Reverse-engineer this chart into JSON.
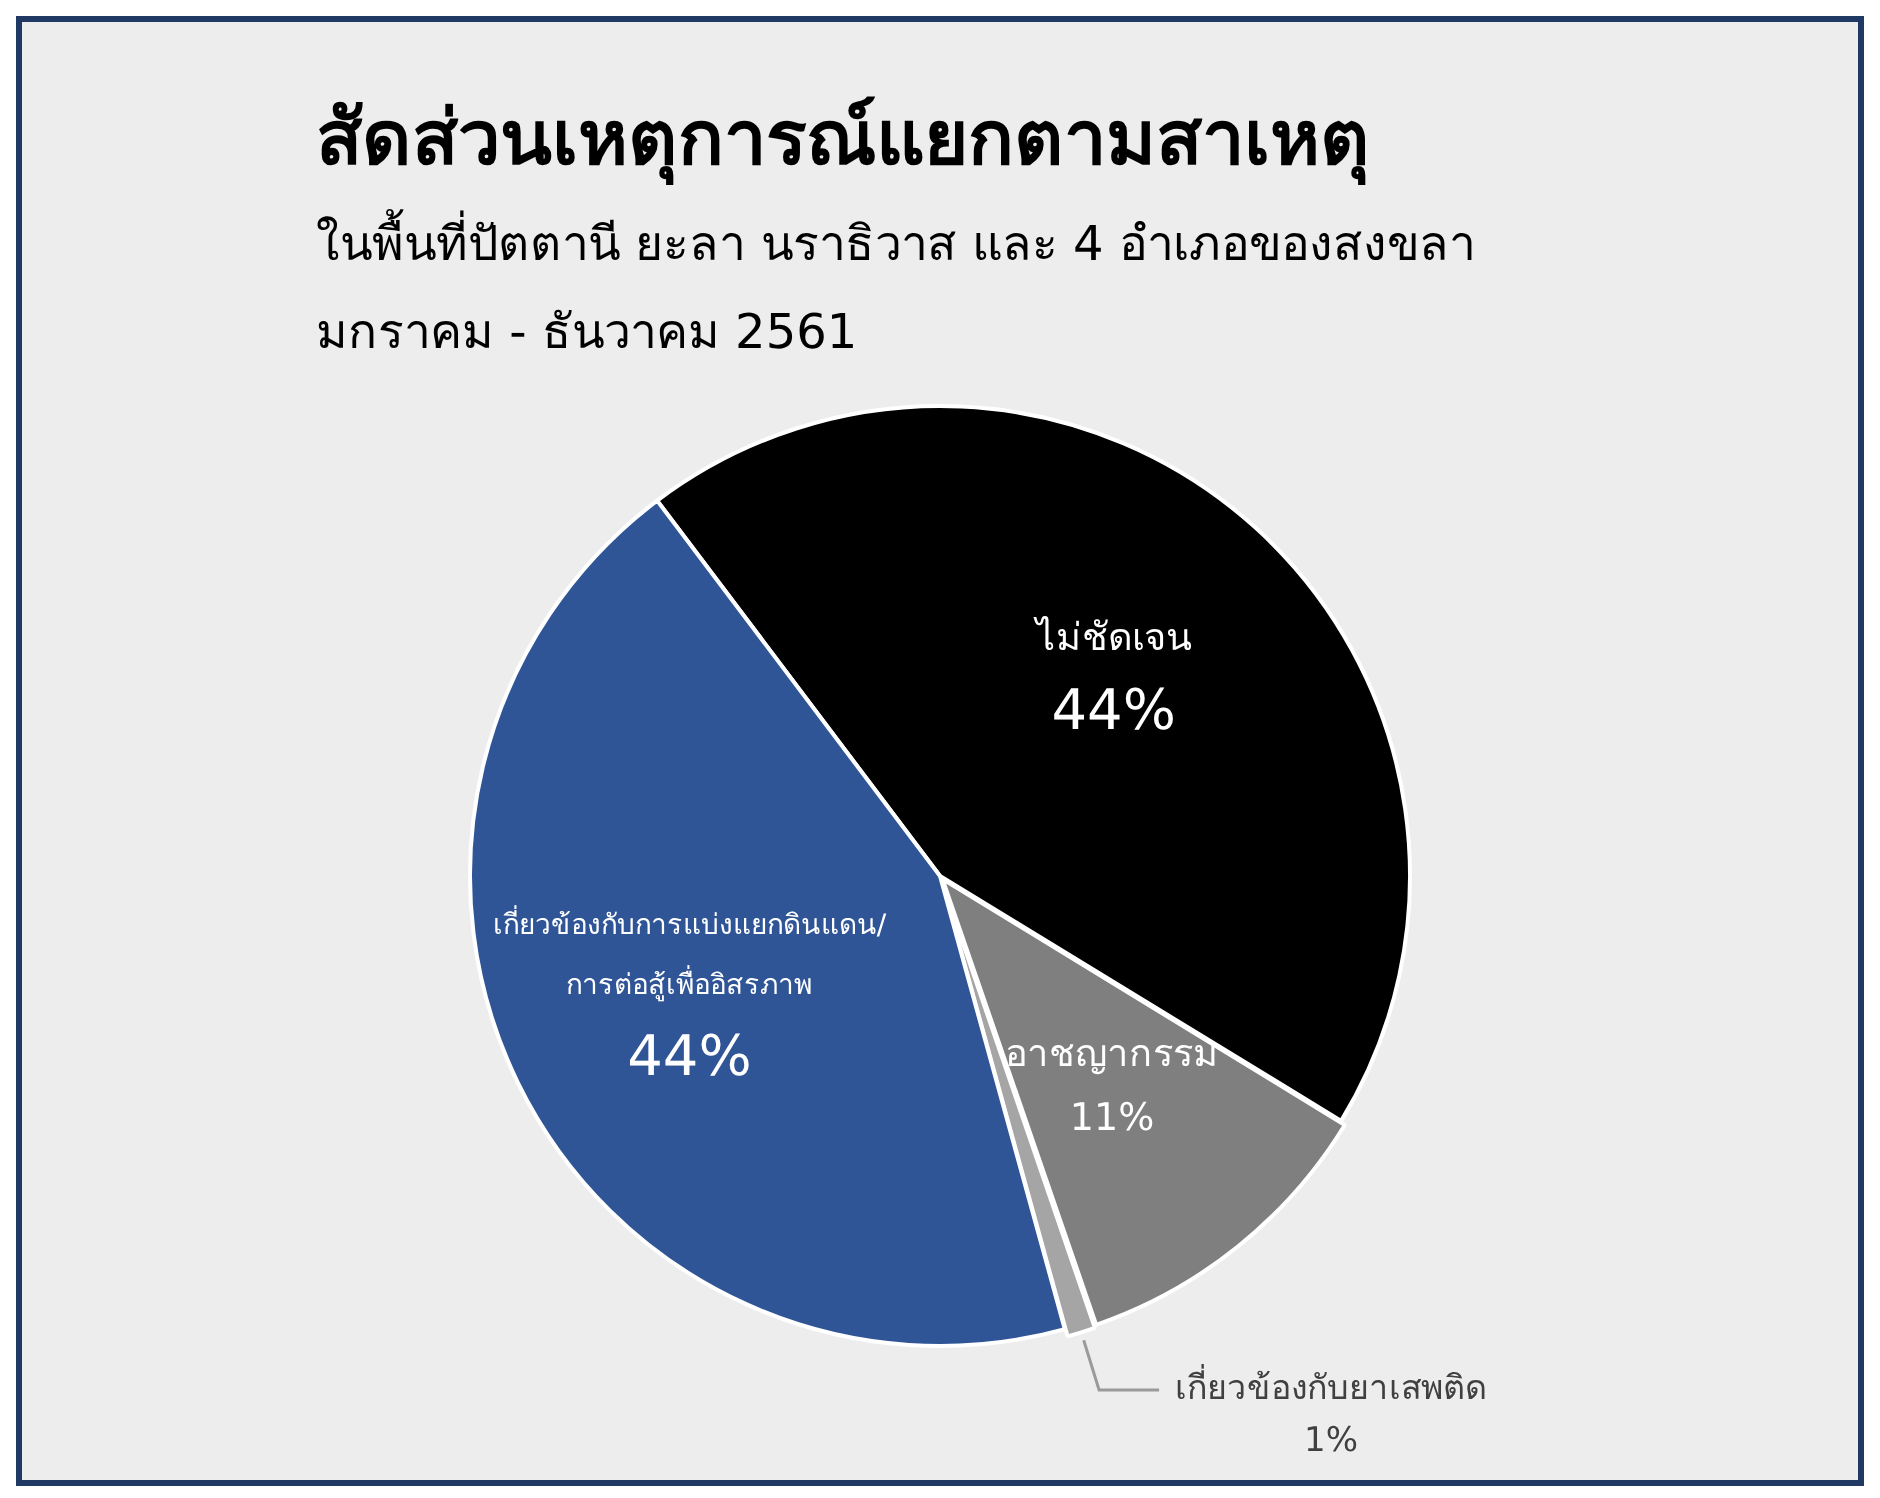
{
  "chart_data": {
    "type": "pie",
    "title": "สัดส่วนเหตุการณ์แยกตามสาเหตุ",
    "subtitle": "ในพื้นที่ปัตตานี ยะลา นราธิวาส และ 4 อำเภอของสงขลา\nมกราคม - ธันวาคม 2561",
    "categories": [
      "ไม่ชัดเจน",
      "อาชญากรรม",
      "เกี่ยวข้องกับยาเสพติด",
      "เกี่ยวข้องกับการแบ่งแยกดินแดน/การต่อสู้เพื่ออิสรภาพ"
    ],
    "values": [
      44,
      11,
      1,
      44
    ],
    "colors": [
      "#000000",
      "#7f7f7f",
      "#a5a5a5",
      "#2f5597"
    ],
    "value_labels": [
      "44%",
      "11%",
      "1%",
      "44%"
    ]
  }
}
